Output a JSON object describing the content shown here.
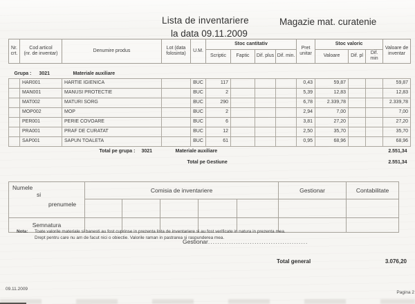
{
  "page": {
    "title": "Lista de inventariere",
    "subtitle": "la data 09.11.2009",
    "store": "Magazie mat. curatenie",
    "footer_date": "09.11.2009",
    "footer_page": "Pagina 2"
  },
  "table": {
    "columns": {
      "nr": [
        "Nr.",
        "crt."
      ],
      "cod": [
        "Cod articol",
        "(nr. de inventar)"
      ],
      "denumire": "Denumire produs",
      "lot": [
        "Lot (data",
        "folosinta)"
      ],
      "um": "U.M.",
      "stoc_cantitativ": "Stoc cantitativ",
      "scriptic": "Scriptic",
      "faptic": "Faptic",
      "dif_plus": "Dif. plus",
      "dif_min": "Dif. min.",
      "pret": [
        "Pret",
        "unitar"
      ],
      "stoc_valoric": "Stoc valoric",
      "valoare": "Valoare",
      "dif_pl": "Dif. pl",
      "dif_min2": "Dif. min",
      "val_inv": [
        "Valoare de",
        "inventar"
      ]
    },
    "group": {
      "label": "Grupa :",
      "code": "3021",
      "name": "Materiale auxiliare"
    },
    "rows": [
      {
        "code": "HAR001",
        "name": "HARTIE IGIENICA",
        "um": "BUC",
        "scriptic": "117",
        "pret": "0,43",
        "valoare": "59,87",
        "val_inv": "59,87"
      },
      {
        "code": "MAN001",
        "name": "MANUSI PROTECTIE",
        "um": "BUC",
        "scriptic": "2",
        "pret": "5,39",
        "valoare": "12,83",
        "val_inv": "12,83"
      },
      {
        "code": "MAT002",
        "name": "MATURI SORG",
        "um": "BUC",
        "scriptic": "290",
        "pret": "6,78",
        "valoare": "2.339,78",
        "val_inv": "2.339,78"
      },
      {
        "code": "MOP002",
        "name": "MOP",
        "um": "BUC",
        "scriptic": "2",
        "pret": "2,94",
        "valoare": "7,00",
        "val_inv": "7,00"
      },
      {
        "code": "PER001",
        "name": "PERIE COVOARE",
        "um": "BUC",
        "scriptic": "6",
        "pret": "3,81",
        "valoare": "27,20",
        "val_inv": "27,20"
      },
      {
        "code": "PRA001",
        "name": "PRAF DE CURATAT",
        "um": "BUC",
        "scriptic": "12",
        "pret": "2,50",
        "valoare": "35,70",
        "val_inv": "35,70"
      },
      {
        "code": "SAP001",
        "name": "SAPUN TOALETA",
        "um": "BUC",
        "scriptic": "61",
        "pret": "0,95",
        "valoare": "68,96",
        "val_inv": "68,96"
      }
    ],
    "total_group": {
      "label": "Total pe grupa :",
      "code": "3021",
      "name": "Materiale auxiliare",
      "value": "2.551,34"
    },
    "total_gestiune": {
      "label": "Total pe Gestiune",
      "value": "2.551,34"
    }
  },
  "signatures": {
    "name_1": "Numele",
    "name_2": "si",
    "name_3": "prenumele",
    "comisia": "Comisia de inventariere",
    "gestionar": "Gestionar",
    "contabilitate": "Contabilitate",
    "semnatura": "Semnatura"
  },
  "nota": {
    "label": "Nota:",
    "line1": "Toate valorile materiale si banesti au fost cuprinse in prezenta lista de inventariere si au fost verificate in natura in prezenta mea.",
    "line2": "Drept pentru care nu am de facut nici o obiectie. Valorile raman in pastrarea si raspunderea mea."
  },
  "gestionar_line": {
    "label": "Gestionar",
    "dots": "..........................................."
  },
  "total_general": {
    "label": "Total general",
    "value": "3.076,20"
  }
}
